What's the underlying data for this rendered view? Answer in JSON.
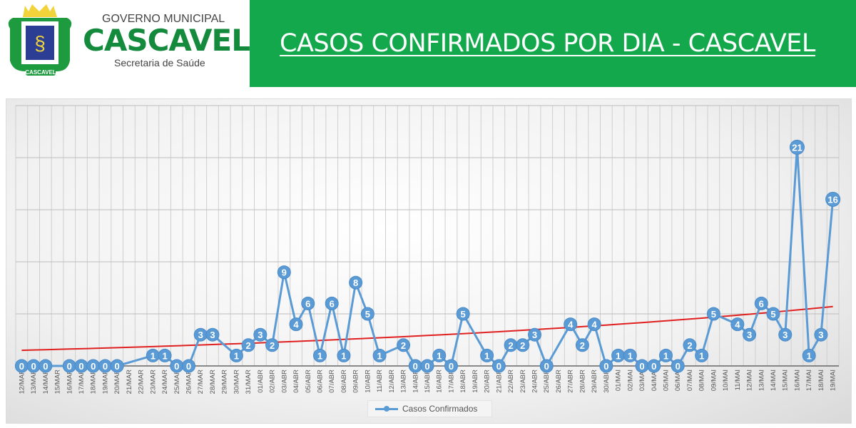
{
  "header": {
    "logo_gov": "GOVERNO MUNICIPAL",
    "logo_city": "CASCAVEL",
    "logo_dept": "Secretaria de Saúde",
    "logo_crest_text": "CASCAVEL",
    "title": "CASOS CONFIRMADOS POR DIA - CASCAVEL",
    "banner_color": "#12a84b"
  },
  "chart_data": {
    "type": "line",
    "title": "",
    "xlabel": "",
    "ylabel": "",
    "ylim": [
      0,
      25
    ],
    "y_gridlines": [
      5,
      10,
      15,
      20,
      25
    ],
    "grid": true,
    "legend_position": "bottom",
    "categories": [
      "12/MAR",
      "13/MAR",
      "14/MAR",
      "15/MAR",
      "16/MAR",
      "17/MAR",
      "18/MAR",
      "19/MAR",
      "20/MAR",
      "21/MAR",
      "22/MAR",
      "23/MAR",
      "24/MAR",
      "25/MAR",
      "26/MAR",
      "27/MAR",
      "28/MAR",
      "29/MAR",
      "30/MAR",
      "31/MAR",
      "01/ABR",
      "02/ABR",
      "03/ABR",
      "04/ABR",
      "05/ABR",
      "06/ABR",
      "07/ABR",
      "08/ABR",
      "09/ABR",
      "10/ABR",
      "11/ABR",
      "12/ABR",
      "13/ABR",
      "14/ABR",
      "15/ABR",
      "16/ABR",
      "17/ABR",
      "18/ABR",
      "19/ABR",
      "20/ABR",
      "21/ABR",
      "22/ABR",
      "23/ABR",
      "24/ABR",
      "25/ABR",
      "26/ABR",
      "27/ABR",
      "28/ABR",
      "29/ABR",
      "30/ABR",
      "01/MAI",
      "02/MAI",
      "03/MAI",
      "04/MAI",
      "05/MAI",
      "06/MAI",
      "07/MAI",
      "08/MAI",
      "09/MAI",
      "10/MAI",
      "11/MAI",
      "12/MAI",
      "13/MAI",
      "14/MAI",
      "15/MAI",
      "16/MAI",
      "17/MAI",
      "18/MAI",
      "19/MAI"
    ],
    "series": [
      {
        "name": "Casos Confirmados",
        "color": "#5b9bd5",
        "values": [
          0,
          0,
          0,
          null,
          0,
          0,
          0,
          0,
          0,
          null,
          null,
          1,
          1,
          0,
          0,
          3,
          3,
          null,
          1,
          2,
          3,
          2,
          9,
          4,
          6,
          1,
          6,
          1,
          8,
          5,
          1,
          null,
          2,
          0,
          0,
          1,
          0,
          5,
          null,
          1,
          0,
          2,
          2,
          3,
          0,
          null,
          4,
          2,
          4,
          0,
          1,
          1,
          0,
          0,
          1,
          0,
          2,
          1,
          5,
          null,
          4,
          3,
          6,
          5,
          3,
          21,
          1,
          3,
          16
        ]
      }
    ],
    "trendline": {
      "type": "exponential",
      "color": "#e02020",
      "start_value": 1.5,
      "end_value": 5.7
    }
  }
}
